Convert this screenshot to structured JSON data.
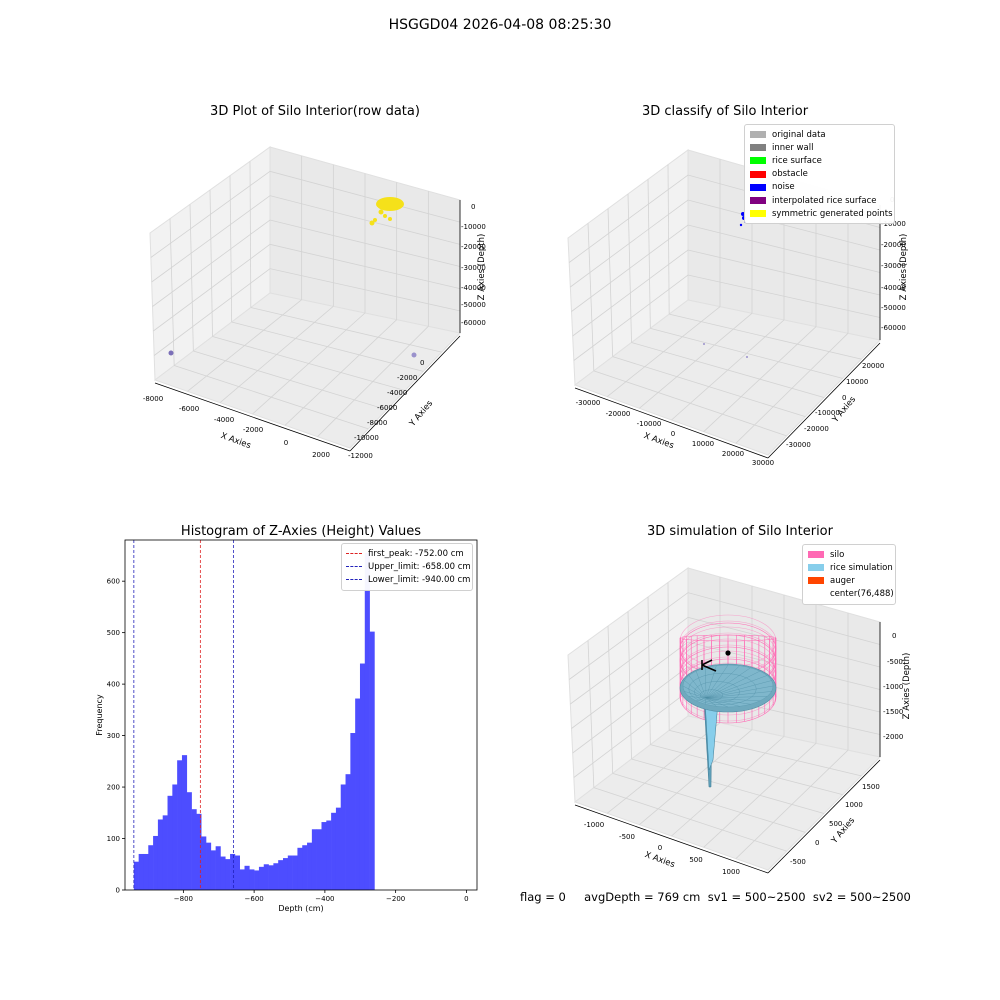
{
  "suptitle": "HSGGD04 2026-04-08 08:25:30",
  "footer": "flag = 0     avgDepth = 769 cm  sv1 = 500~2500  sv2 = 500~2500",
  "chart_data": [
    {
      "type": "scatter",
      "title": "3D Plot of Silo Interior(row data)",
      "xlabel": "X Axies",
      "ylabel": "Y Axies",
      "zlabel": "Z Axies (Depth)",
      "x_ticks": [
        "-8000",
        "-6000",
        "-4000",
        "-2000",
        "0",
        "2000"
      ],
      "y_ticks": [
        "0",
        "-2000",
        "-4000",
        "-6000",
        "-8000",
        "-10000",
        "-12000"
      ],
      "z_ticks": [
        "0",
        "-10000",
        "-20000",
        "-30000",
        "-40000",
        "-50000",
        "-60000"
      ],
      "colors": {
        "points": "#f5e11a",
        "outliers": "#7b6fb8"
      }
    },
    {
      "type": "scatter",
      "title": "3D classify of Silo Interior",
      "xlabel": "X Axies",
      "ylabel": "Y Axies",
      "zlabel": "Z Axies (Depth)",
      "x_ticks": [
        "-30000",
        "-20000",
        "-10000",
        "0",
        "10000",
        "20000",
        "30000"
      ],
      "y_ticks": [
        "20000",
        "10000",
        "0",
        "-10000",
        "-20000",
        "-30000"
      ],
      "z_ticks": [
        "0",
        "-10000",
        "-20000",
        "-30000",
        "-40000",
        "-50000",
        "-60000"
      ],
      "legend": [
        {
          "label": "original data",
          "color": "#b0b0b0"
        },
        {
          "label": "inner wall",
          "color": "#808080"
        },
        {
          "label": "rice surface",
          "color": "#00ff00"
        },
        {
          "label": "obstacle",
          "color": "#ff0000"
        },
        {
          "label": "noise",
          "color": "#0000ff"
        },
        {
          "label": "interpolated rice surface",
          "color": "#800080"
        },
        {
          "label": "symmetric generated points",
          "color": "#ffff00"
        }
      ]
    },
    {
      "type": "bar",
      "title": "Histogram of Z-Axies (Height) Values",
      "xlabel": "Depth (cm)",
      "ylabel": "Frequency",
      "bar_color": "#4d4dff",
      "xlim": [
        -965,
        30
      ],
      "ylim": [
        0,
        680
      ],
      "x_ticks": [
        -800,
        -600,
        -400,
        -200,
        0
      ],
      "y_ticks": [
        0,
        100,
        200,
        300,
        400,
        500,
        600
      ],
      "bin_start": -940,
      "bin_width": 13.6,
      "values": [
        55,
        70,
        70,
        87,
        105,
        137,
        145,
        183,
        205,
        252,
        262,
        190,
        157,
        148,
        104,
        92,
        77,
        85,
        65,
        60,
        70,
        67,
        40,
        47,
        40,
        38,
        45,
        50,
        48,
        52,
        58,
        62,
        67,
        67,
        82,
        87,
        92,
        118,
        118,
        132,
        135,
        150,
        160,
        205,
        225,
        305,
        372,
        440,
        655,
        502
      ],
      "lines": [
        {
          "label": "first_peak: -752.00 cm",
          "value": -752,
          "color": "#dd2222"
        },
        {
          "label": "Upper_limit: -658.00 cm",
          "value": -658,
          "color": "#2222bb"
        },
        {
          "label": "Lower_limit: -940.00 cm",
          "value": -940,
          "color": "#2222bb"
        }
      ]
    },
    {
      "type": "area",
      "title": "3D simulation of Silo Interior",
      "xlabel": "X Axies",
      "ylabel": "Y Axies",
      "zlabel": "Z Axies (Depth)",
      "x_ticks": [
        "-1000",
        "-500",
        "0",
        "500",
        "1000"
      ],
      "y_ticks": [
        "1500",
        "1000",
        "500",
        "0",
        "-500"
      ],
      "z_ticks": [
        "0",
        "-500",
        "-1000",
        "-1500",
        "-2000"
      ],
      "legend": [
        {
          "label": "silo",
          "color": "#ff69b4"
        },
        {
          "label": "rice simulation",
          "color": "#87ceeb"
        },
        {
          "label": "auger",
          "color": "#ff4500"
        },
        {
          "label": "center(76,488)",
          "color": ""
        }
      ]
    }
  ]
}
